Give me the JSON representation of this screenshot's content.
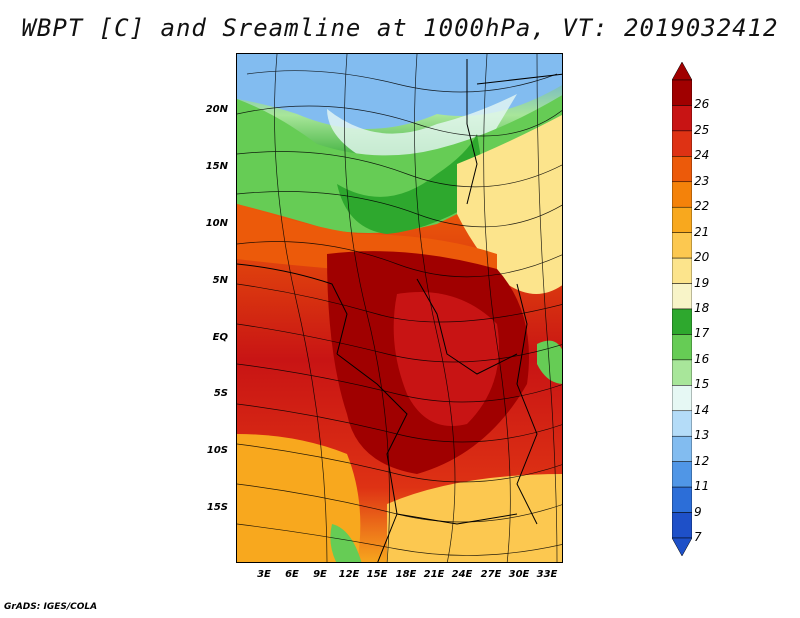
{
  "title": "WBPT [C] and Sreamline at 1000hPa, VT: 2019032412",
  "credit": "GrADS: IGES/COLA",
  "axes": {
    "lat_ticks": [
      "20N",
      "15N",
      "10N",
      "5N",
      "EQ",
      "5S",
      "10S",
      "15S"
    ],
    "lon_ticks": [
      "3E",
      "6E",
      "9E",
      "12E",
      "15E",
      "18E",
      "21E",
      "24E",
      "27E",
      "30E",
      "33E"
    ]
  },
  "colorbar": {
    "levels": [
      "26",
      "25",
      "24",
      "23",
      "22",
      "21",
      "20",
      "19",
      "18",
      "17",
      "16",
      "15",
      "14",
      "13",
      "12",
      "11",
      "9",
      "7"
    ],
    "colors": [
      "#a00000",
      "#c81414",
      "#de3214",
      "#ec5a0a",
      "#f4820a",
      "#f8a81e",
      "#fcc850",
      "#fce48c",
      "#f8f4c8",
      "#2ea82e",
      "#66cc55",
      "#a8e69a",
      "#e6f8f4",
      "#b4dcf8",
      "#82bcf0",
      "#5096e6",
      "#2c6ed8",
      "#1e50c8"
    ]
  }
}
